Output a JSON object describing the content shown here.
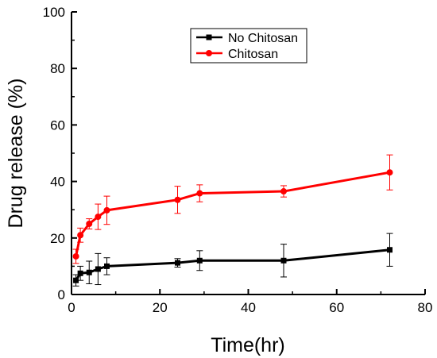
{
  "chart_data": {
    "type": "line",
    "title": "",
    "xlabel": "Time(hr)",
    "ylabel": "Drug release (%)",
    "xlim": [
      0,
      80
    ],
    "ylim": [
      0,
      100
    ],
    "x_ticks": [
      0,
      20,
      40,
      60,
      80
    ],
    "y_ticks": [
      0,
      20,
      40,
      60,
      80,
      100
    ],
    "grid": false,
    "legend_position": "top-right",
    "series": [
      {
        "name": "No Chitosan",
        "color": "#000000",
        "marker": "square",
        "x": [
          1,
          2,
          4,
          6,
          8,
          24,
          29,
          48,
          72
        ],
        "y": [
          5.0,
          7.5,
          7.8,
          9.0,
          10.0,
          11.2,
          12.0,
          12.0,
          15.8
        ],
        "error": [
          2.0,
          2.5,
          4.0,
          5.5,
          3.0,
          1.5,
          3.5,
          5.8,
          5.8
        ]
      },
      {
        "name": "Chitosan",
        "color": "#ff0000",
        "marker": "circle",
        "x": [
          1,
          2,
          4,
          6,
          8,
          24,
          29,
          48,
          72
        ],
        "y": [
          13.5,
          21.0,
          25.0,
          27.5,
          29.8,
          33.5,
          35.8,
          36.5,
          43.2
        ],
        "error": [
          2.5,
          2.5,
          1.8,
          4.5,
          5.0,
          4.8,
          3.0,
          2.0,
          6.2
        ]
      }
    ]
  }
}
